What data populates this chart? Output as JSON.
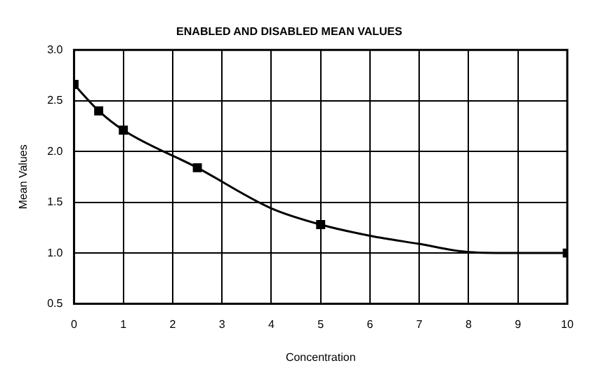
{
  "chart_data": {
    "type": "scatter",
    "title": "ENABLED AND DISABLED MEAN VALUES",
    "xlabel": "Concentration",
    "ylabel": "Mean Values",
    "xlim": [
      0,
      10
    ],
    "xticks": [
      0,
      1,
      2,
      3,
      4,
      5,
      6,
      7,
      8,
      9,
      10
    ],
    "ylim": [
      0.5,
      3.0
    ],
    "yticks": [
      0.5,
      {
        "value": 1,
        "label": "1.0"
      },
      1.5,
      {
        "value": 2,
        "label": "2.0"
      },
      2.5,
      {
        "value": 3,
        "label": "3.0"
      }
    ],
    "grid": true,
    "marker": "square",
    "series": [
      {
        "type": "scatter",
        "color": "#000000",
        "x": [
          0,
          0.5,
          1,
          2.5,
          5,
          10
        ],
        "values": [
          2.66,
          2.4,
          2.21,
          1.84,
          1.28,
          1.0
        ]
      },
      {
        "type": "line",
        "color": "#000000",
        "marker": "none",
        "x": [
          0,
          0.5,
          1,
          2.5,
          4,
          5,
          6,
          7,
          8,
          9,
          10
        ],
        "values": [
          2.66,
          2.4,
          2.21,
          1.84,
          1.44,
          1.28,
          1.17,
          1.09,
          1.01,
          1.0,
          1.0
        ]
      }
    ]
  }
}
